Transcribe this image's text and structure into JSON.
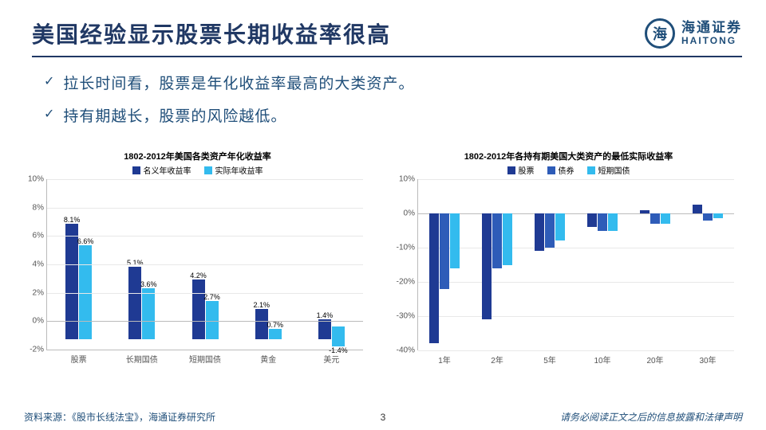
{
  "title": "美国经验显示股票长期收益率很高",
  "logo": {
    "cn": "海通证券",
    "en": "HAITONG",
    "glyph": "海"
  },
  "bullets": [
    "拉长时间看，股票是年化收益率最高的大类资产。",
    "持有期越长，股票的风险越低。"
  ],
  "chart1": {
    "type": "bar",
    "title": "1802-2012年美国各类资产年化收益率",
    "legend": [
      {
        "label": "名义年收益率",
        "color": "#1f3a93"
      },
      {
        "label": "实际年收益率",
        "color": "#33bbee"
      }
    ],
    "ylim": [
      -2,
      10
    ],
    "ytick_step": 2,
    "categories": [
      "股票",
      "长期国债",
      "短期国债",
      "黄金",
      "美元"
    ],
    "series": [
      {
        "color": "#1f3a93",
        "values": [
          8.1,
          5.1,
          4.2,
          2.1,
          1.4
        ],
        "labels": [
          "8.1%",
          "5.1%",
          "4.2%",
          "2.1%",
          "1.4%"
        ]
      },
      {
        "color": "#33bbee",
        "values": [
          6.6,
          3.6,
          2.7,
          0.7,
          -1.4
        ],
        "labels": [
          "6.6%",
          "3.6%",
          "2.7%",
          "0.7%",
          "-1.4%"
        ]
      }
    ],
    "grid_color": "#e8e8e8",
    "label_fontsize": 10
  },
  "chart2": {
    "type": "bar",
    "title": "1802-2012年各持有期美国大类资产的最低实际收益率",
    "legend": [
      {
        "label": "股票",
        "color": "#1f3a93"
      },
      {
        "label": "债券",
        "color": "#2e5cb8"
      },
      {
        "label": "短期国债",
        "color": "#33bbee"
      }
    ],
    "ylim": [
      -40,
      10
    ],
    "ytick_step": 10,
    "categories": [
      "1年",
      "2年",
      "5年",
      "10年",
      "20年",
      "30年"
    ],
    "series": [
      {
        "color": "#1f3a93",
        "values": [
          -38,
          -31,
          -11,
          -4,
          1,
          2.5
        ]
      },
      {
        "color": "#2e5cb8",
        "values": [
          -22,
          -16,
          -10,
          -5,
          -3,
          -2
        ]
      },
      {
        "color": "#33bbee",
        "values": [
          -16,
          -15,
          -8,
          -5,
          -3,
          -1.5
        ]
      }
    ],
    "grid_color": "#e8e8e8",
    "label_fontsize": 10
  },
  "footer": {
    "source": "资料来源：《股市长线法宝》，海通证券研究所",
    "page": "3",
    "disclaimer": "请务必阅读正文之后的信息披露和法律声明"
  }
}
